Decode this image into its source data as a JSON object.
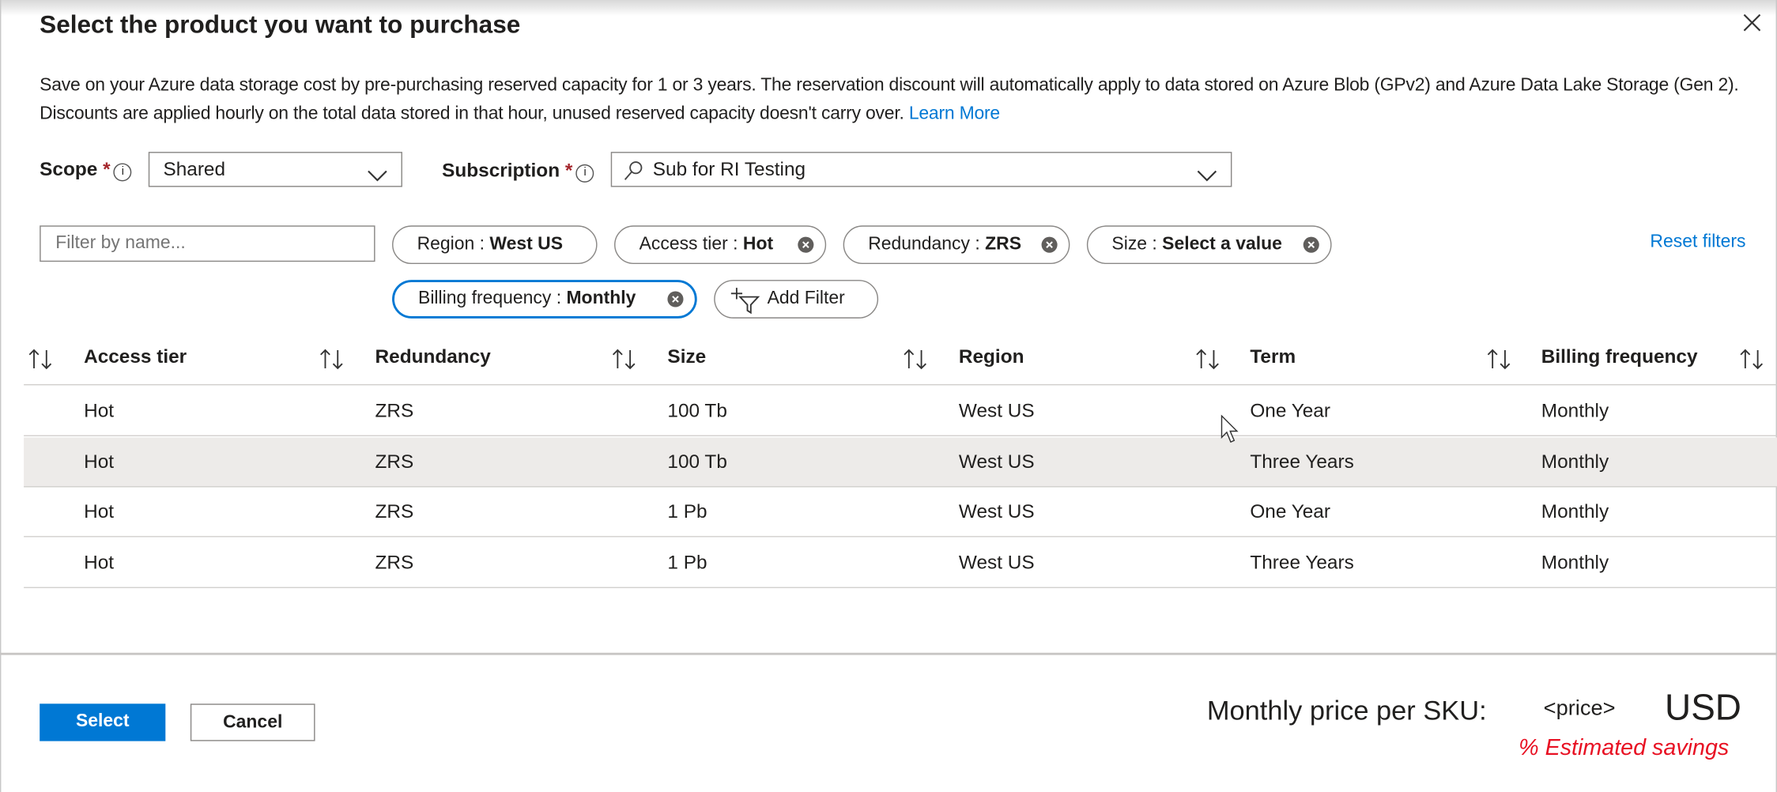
{
  "dialog": {
    "title": "Select the product you want to purchase",
    "close_icon": "close-icon",
    "description": "Save on your Azure data storage cost by pre-purchasing reserved capacity for 1 or 3 years. The reservation discount will automatically apply to data stored on Azure Blob (GPv2) and Azure Data Lake Storage (Gen 2). Discounts are applied hourly on the total data stored in that hour, unused reserved capacity doesn't carry over.",
    "learn_more": "Learn More"
  },
  "scope": {
    "label": "Scope",
    "required": "*",
    "value": "Shared"
  },
  "subscription": {
    "label": "Subscription",
    "required": "*",
    "value": "Sub for RI Testing"
  },
  "filter": {
    "placeholder": "Filter by name...",
    "pills": [
      {
        "key": "Region : ",
        "value": "West US"
      },
      {
        "key": "Access tier : ",
        "value": "Hot"
      },
      {
        "key": "Redundancy : ",
        "value": "ZRS"
      },
      {
        "key": "Size : ",
        "value": "Select a value"
      },
      {
        "key": "Billing frequency : ",
        "value": "Monthly"
      }
    ],
    "add_filter": "Add Filter",
    "reset": "Reset filters"
  },
  "table": {
    "columns": [
      "Access tier",
      "Redundancy",
      "Size",
      "Region",
      "Term",
      "Billing frequency"
    ],
    "rows": [
      [
        "Hot",
        "ZRS",
        "100 Tb",
        "West US",
        "One Year",
        "Monthly"
      ],
      [
        "Hot",
        "ZRS",
        "100 Tb",
        "West US",
        "Three Years",
        "Monthly"
      ],
      [
        "Hot",
        "ZRS",
        "1 Pb",
        "West US",
        "One Year",
        "Monthly"
      ],
      [
        "Hot",
        "ZRS",
        "1 Pb",
        "West US",
        "Three Years",
        "Monthly"
      ]
    ]
  },
  "footer": {
    "select": "Select",
    "cancel": "Cancel",
    "price_label": "Monthly price per SKU:",
    "price": "<price>",
    "currency": "USD",
    "savings": "% Estimated savings"
  },
  "colors": {
    "accent": "#0078d4",
    "savings": "#e81123",
    "selected_row": "#edebe9"
  }
}
